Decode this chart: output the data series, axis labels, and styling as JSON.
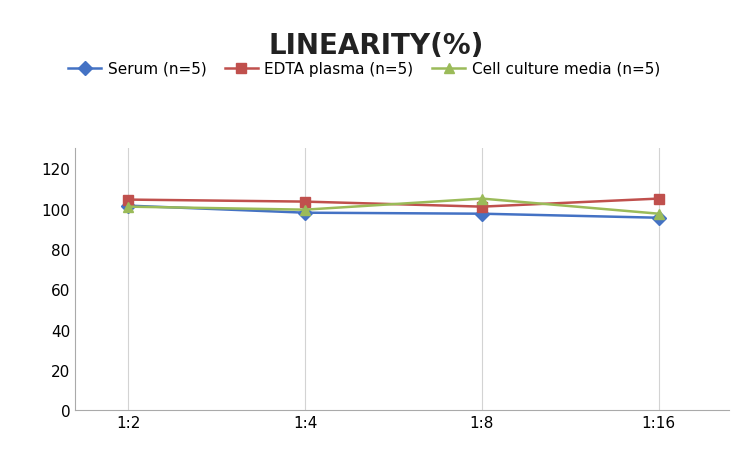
{
  "title": "LINEARITY(%)",
  "x_labels": [
    "1:2",
    "1:4",
    "1:8",
    "1:16"
  ],
  "x_positions": [
    0,
    1,
    2,
    3
  ],
  "series": [
    {
      "label": "Serum (n=5)",
      "color": "#4472C4",
      "marker": "D",
      "values": [
        101.5,
        98.0,
        97.5,
        95.5
      ]
    },
    {
      "label": "EDTA plasma (n=5)",
      "color": "#C0504D",
      "marker": "s",
      "values": [
        104.5,
        103.5,
        101.0,
        105.0
      ]
    },
    {
      "label": "Cell culture media (n=5)",
      "color": "#9BBB59",
      "marker": "^",
      "values": [
        101.0,
        99.5,
        105.0,
        97.5
      ]
    }
  ],
  "ylim": [
    0,
    130
  ],
  "yticks": [
    0,
    20,
    40,
    60,
    80,
    100,
    120
  ],
  "background_color": "#ffffff",
  "grid_color": "#d3d3d3",
  "title_fontsize": 20,
  "tick_fontsize": 11,
  "legend_fontsize": 11
}
